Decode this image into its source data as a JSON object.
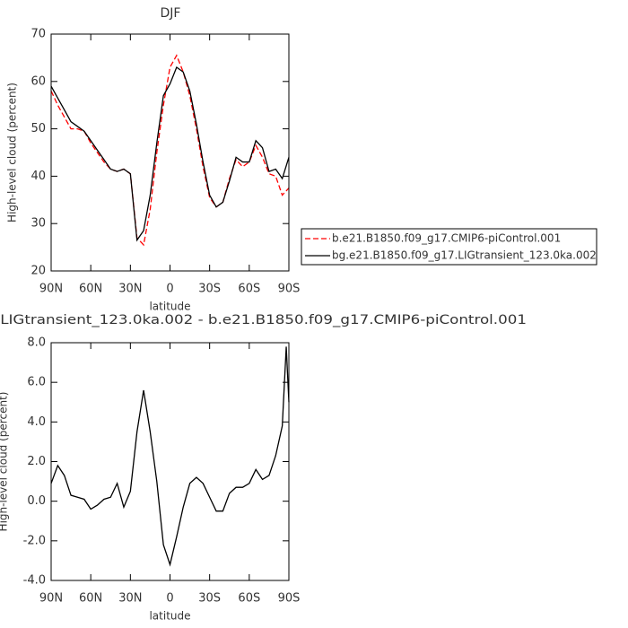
{
  "chart_data": [
    {
      "type": "line",
      "title": "DJF",
      "xlabel": "latitude",
      "ylabel": "High-level cloud (percent)",
      "x": [
        90,
        85,
        80,
        75,
        70,
        65,
        60,
        55,
        50,
        45,
        40,
        35,
        30,
        25,
        20,
        15,
        10,
        5,
        0,
        -5,
        -10,
        -15,
        -20,
        -25,
        -30,
        -35,
        -40,
        -45,
        -50,
        -55,
        -60,
        -65,
        -70,
        -75,
        -80,
        -85,
        -90
      ],
      "xlim": [
        90,
        -90
      ],
      "xticks": [
        {
          "value": 90,
          "label": "90N"
        },
        {
          "value": 60,
          "label": "60N"
        },
        {
          "value": 30,
          "label": "30N"
        },
        0,
        {
          "value": -30,
          "label": "30S"
        },
        {
          "value": -60,
          "label": "60S"
        },
        {
          "value": -90,
          "label": "90S"
        }
      ],
      "ylim": [
        20,
        70
      ],
      "yticks": [
        20,
        30,
        40,
        50,
        60,
        70
      ],
      "legend": "right",
      "series": [
        {
          "name": "b.e21.B1850.f09_g17.CMIP6-piControl.001",
          "color": "#ff0000",
          "dash": true,
          "values": [
            58,
            55,
            52.5,
            50,
            50,
            49.5,
            47,
            45,
            43,
            41.5,
            41,
            41.5,
            40.5,
            27,
            25.5,
            33,
            45,
            55,
            63,
            65.5,
            62,
            57,
            50,
            42,
            35.5,
            33.5,
            34.5,
            39.5,
            43.5,
            42,
            43,
            46.5,
            44,
            40.5,
            40,
            36,
            37.5
          ]
        },
        {
          "name": "bg.e21.B1850.f09_g17.LIGtransient_123.0ka.002",
          "color": "#000000",
          "dash": false,
          "values": [
            59,
            56.5,
            54,
            51.5,
            50.5,
            49.5,
            47.5,
            45.5,
            43.5,
            41.5,
            41,
            41.5,
            40.5,
            26.5,
            28.5,
            36,
            47,
            57,
            59.5,
            63,
            62,
            58,
            51,
            43,
            36,
            33.5,
            34.5,
            39,
            44,
            43,
            43,
            47.5,
            46,
            41,
            41.5,
            39.5,
            44
          ]
        }
      ]
    },
    {
      "type": "line",
      "title": "bg.e21.B1850.f09_g17.LIGtransient_123.0ka.002 - b.e21.B1850.f09_g17.CMIP6-piControl.001",
      "xlabel": "latitude",
      "ylabel": "High-level cloud (percent)",
      "x": [
        90,
        85,
        80,
        75,
        70,
        65,
        60,
        55,
        50,
        45,
        40,
        35,
        30,
        25,
        20,
        15,
        10,
        5,
        0,
        -5,
        -10,
        -15,
        -20,
        -25,
        -30,
        -35,
        -40,
        -45,
        -50,
        -55,
        -60,
        -65,
        -70,
        -75,
        -80,
        -85,
        -88,
        -90
      ],
      "xlim": [
        90,
        -90
      ],
      "xticks": [
        {
          "value": 90,
          "label": "90N"
        },
        {
          "value": 60,
          "label": "60N"
        },
        {
          "value": 30,
          "label": "30N"
        },
        0,
        {
          "value": -30,
          "label": "30S"
        },
        {
          "value": -60,
          "label": "60S"
        },
        {
          "value": -90,
          "label": "90S"
        }
      ],
      "ylim": [
        -4,
        8
      ],
      "yticks": [
        {
          "value": -4,
          "label": "-4.0"
        },
        {
          "value": -2,
          "label": "-2.0"
        },
        {
          "value": 0,
          "label": "0.0"
        },
        {
          "value": 2,
          "label": "2.0"
        },
        {
          "value": 4,
          "label": "4.0"
        },
        {
          "value": 6,
          "label": "6.0"
        },
        {
          "value": 8,
          "label": "8.0"
        }
      ],
      "series": [
        {
          "color": "#000000",
          "dash": false,
          "values": [
            0.9,
            1.8,
            1.3,
            0.3,
            0.2,
            0.1,
            -0.4,
            -0.2,
            0.1,
            0.2,
            0.9,
            -0.3,
            0.5,
            3.5,
            5.6,
            3.5,
            1.0,
            -2.2,
            -3.2,
            -1.8,
            -0.3,
            0.9,
            1.2,
            0.9,
            0.2,
            -0.5,
            -0.5,
            0.4,
            0.7,
            0.7,
            0.9,
            1.6,
            1.1,
            1.3,
            2.3,
            3.8,
            7.8,
            5.0
          ]
        }
      ]
    }
  ]
}
